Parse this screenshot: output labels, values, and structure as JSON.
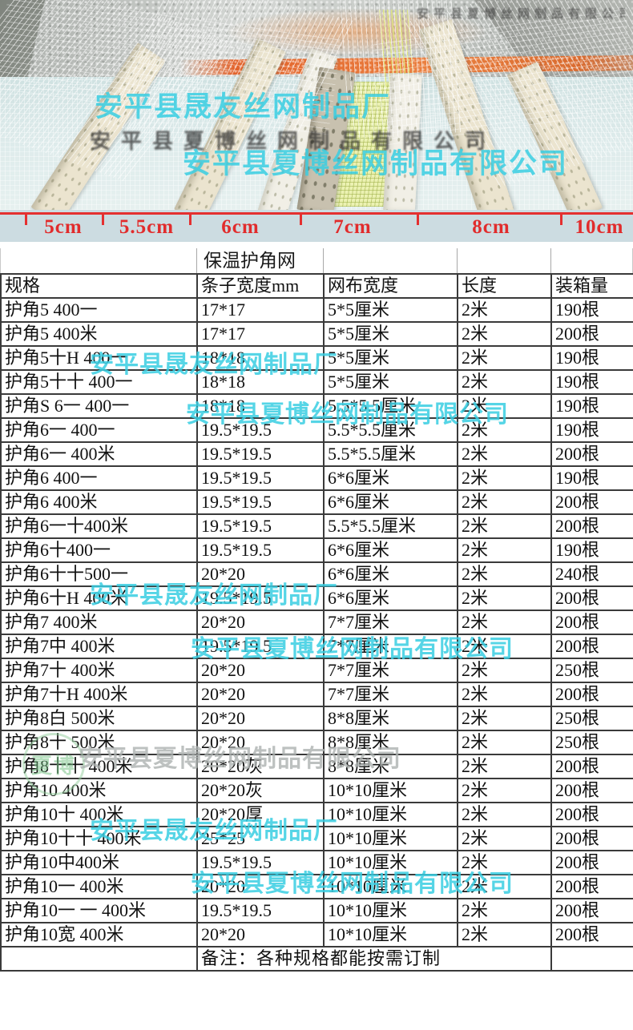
{
  "photo": {
    "watermark_sy": "安平县晟友丝网制品厂",
    "watermark_xb": "安平县夏博丝网制品有限公司",
    "stamp_text": "安平县夏博丝网制品有限公司",
    "logo_text": "夏博"
  },
  "ruler": {
    "labels": [
      "5cm",
      "5.5cm",
      "6cm",
      "7cm",
      "8cm",
      "10cm"
    ],
    "line_color": "#e43030"
  },
  "watermarks": {
    "sy": "安平县晟友丝网制品厂",
    "xb": "安平县夏博丝网制品有限公司"
  },
  "table": {
    "title": "保温护角网",
    "columns": [
      "规格",
      "条子宽度mm",
      "网布宽度",
      "长度",
      "装箱量"
    ],
    "rows": [
      [
        "护角5 400一",
        "17*17",
        "5*5厘米",
        "2米",
        "190根"
      ],
      [
        "护角5 400米",
        "17*17",
        "5*5厘米",
        "2米",
        "200根"
      ],
      [
        "护角5十H 400一",
        "18*18",
        "5*5厘米",
        "2米",
        "190根"
      ],
      [
        "护角5十十 400一",
        "18*18",
        "5*5厘米",
        "2米",
        "190根"
      ],
      [
        "护角S 6一 400一",
        "18*18",
        "5.5*5.5厘米",
        "2米",
        "190根"
      ],
      [
        "护角6一 400一",
        "19.5*19.5",
        "5.5*5.5厘米",
        "2米",
        "190根"
      ],
      [
        "护角6一 400米",
        "19.5*19.5",
        "5.5*5.5厘米",
        "2米",
        "200根"
      ],
      [
        "护角6 400一",
        "19.5*19.5",
        "6*6厘米",
        "2米",
        "190根"
      ],
      [
        "护角6 400米",
        "19.5*19.5",
        "6*6厘米",
        "2米",
        "200根"
      ],
      [
        "护角6一十400米",
        "19.5*19.5",
        "5.5*5.5厘米",
        "2米",
        "200根"
      ],
      [
        "护角6十400一",
        "19.5*19.5",
        "6*6厘米",
        "2米",
        "190根"
      ],
      [
        "护角6十十500一",
        "20*20",
        "6*6厘米",
        "2米",
        "240根"
      ],
      [
        "护角6十H 400米",
        "19.5*19.5",
        "6*6厘米",
        "2米",
        "200根"
      ],
      [
        "护角7 400米",
        "20*20",
        "7*7厘米",
        "2米",
        "200根"
      ],
      [
        "护角7中 400米",
        "19.5*19.5",
        "7*7厘米",
        "2米",
        "200根"
      ],
      [
        "护角7十 400米",
        "20*20",
        "7*7厘米",
        "2米",
        "250根"
      ],
      [
        "护角7十H 400米",
        "20*20",
        "7*7厘米",
        "2米",
        "200根"
      ],
      [
        "护角8白 500米",
        "20*20",
        "8*8厘米",
        "2米",
        "250根"
      ],
      [
        "护角8十 500米",
        "20*20",
        "8*8厘米",
        "2米",
        "250根"
      ],
      [
        "护角8十十 400米",
        "20*20灰",
        "8*8厘米",
        "2米",
        "200根"
      ],
      [
        "护角10 400米",
        "20*20灰",
        "10*10厘米",
        "2米",
        "200根"
      ],
      [
        "护角10十 400米",
        "20*20厚",
        "10*10厘米",
        "2米",
        "200根"
      ],
      [
        "护角10十十 400米",
        "25*25",
        "10*10厘米",
        "2米",
        "200根"
      ],
      [
        "护角10中400米",
        "19.5*19.5",
        "10*10厘米",
        "2米",
        "200根"
      ],
      [
        "护角10一 400米",
        "20*20",
        "10*10厘米",
        "2米",
        "200根"
      ],
      [
        "护角10一 一 400米",
        "19.5*19.5",
        "10*10厘米",
        "2米",
        "200根"
      ],
      [
        "护角10宽 400米",
        "20*20",
        "10*10厘米",
        "2米",
        "200根"
      ]
    ],
    "note": "备注：各种规格都能按需订制"
  }
}
